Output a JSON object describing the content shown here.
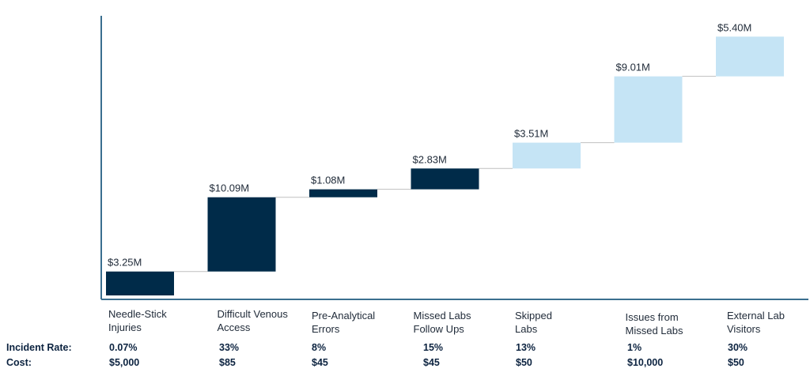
{
  "chart_data": {
    "type": "waterfall",
    "title": "",
    "xlabel": "",
    "ylabel": "",
    "categories": [
      "Needle-Stick Injuries",
      "Difficult Venous Access",
      "Pre-Analytical Errors",
      "Missed Labs Follow Ups",
      "Skipped Labs",
      "Issues from Missed Labs",
      "External Lab Visitors"
    ],
    "category_lines": [
      [
        "Needle-Stick",
        "Injuries"
      ],
      [
        "Difficult Venous",
        "Access"
      ],
      [
        "Pre-Analytical",
        "Errors"
      ],
      [
        "Missed Labs",
        "Follow Ups"
      ],
      [
        "Skipped",
        "Labs"
      ],
      [
        "Issues from",
        "Missed Labs"
      ],
      [
        "External Lab",
        "Visitors"
      ]
    ],
    "values": [
      3.25,
      10.09,
      1.08,
      2.83,
      3.51,
      9.01,
      5.4
    ],
    "data_labels": [
      "$3.25M",
      "$10.09M",
      "$1.08M",
      "$2.83M",
      "$3.51M",
      "$9.01M",
      "$5.40M"
    ],
    "bar_colors": [
      "#002b49",
      "#002b49",
      "#002b49",
      "#002b49",
      "#c5e4f5",
      "#c5e4f5",
      "#c5e4f5"
    ],
    "grid": false,
    "ylim": [
      0,
      38
    ]
  },
  "table": {
    "incident_rate_label": "Incident Rate:",
    "cost_label": "Cost:",
    "incident_rates": [
      "0.07%",
      "33%",
      "8%",
      "15%",
      "13%",
      "1%",
      "30%"
    ],
    "costs": [
      "$5,000",
      "$85",
      "$45",
      "$45",
      "$50",
      "$10,000",
      "$50"
    ]
  }
}
